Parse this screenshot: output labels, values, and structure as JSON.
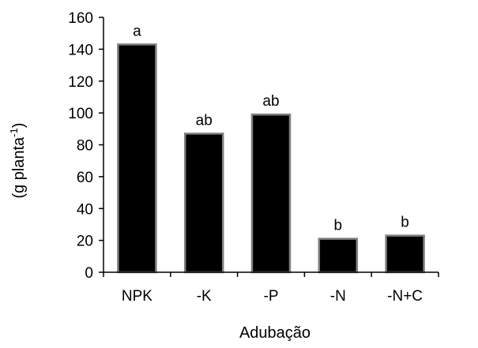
{
  "chart_data": {
    "type": "bar",
    "categories": [
      "NPK",
      "-K",
      "-P",
      "-N",
      "-N+C"
    ],
    "values": [
      143,
      87,
      99,
      21,
      23
    ],
    "data_labels": [
      "a",
      "ab",
      "ab",
      "b",
      "b"
    ],
    "xlabel": "Adubação",
    "ylabel": "(g planta",
    "ylabel_sup": "-1",
    "ylabel_close": ")",
    "ylim": [
      0,
      160
    ],
    "yticks": [
      0,
      20,
      40,
      60,
      80,
      100,
      120,
      140,
      160
    ],
    "grid": false,
    "legend": "none",
    "colors": {
      "bar_fill": "#000000",
      "bar_edge": "#7f7f7f"
    }
  }
}
